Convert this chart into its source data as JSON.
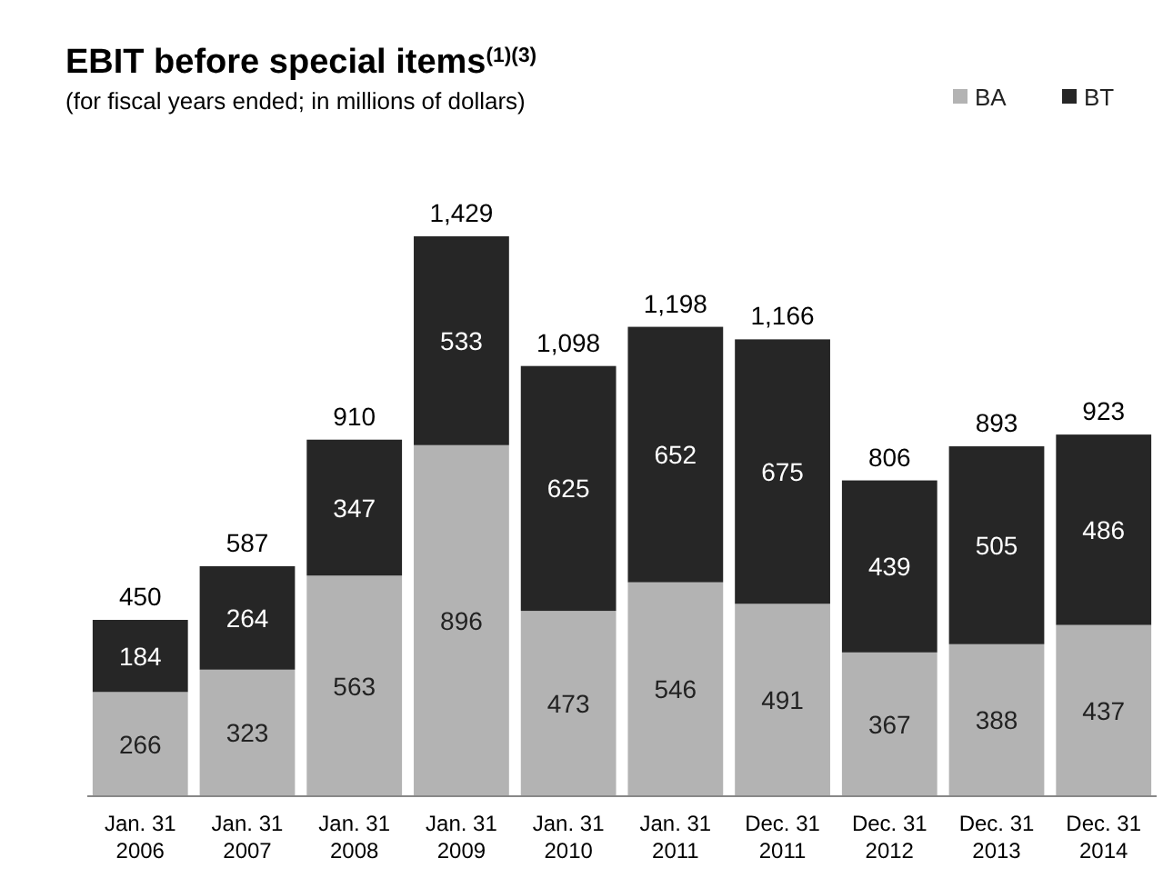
{
  "chart_data": {
    "type": "bar",
    "title": "EBIT before special items$^{(1)(3)}$",
    "subtitle": "(for fiscal years ended; in millions of dollars)",
    "categories": [
      "Jan. 31 2006",
      "Jan. 31 2007",
      "Jan. 31 2008",
      "Jan. 31 2009",
      "Jan. 31 2010",
      "Jan. 31 2011",
      "Dec. 31 2011",
      "Dec. 31 2012",
      "Dec. 31 2013",
      "Dec. 31 2014"
    ],
    "series": [
      {
        "name": "BA",
        "color": "#b3b3b3",
        "values": [
          266,
          323,
          563,
          896,
          473,
          546,
          491,
          367,
          388,
          437
        ]
      },
      {
        "name": "BT",
        "color": "#262626",
        "values": [
          184,
          264,
          347,
          533,
          625,
          652,
          675,
          439,
          505,
          486
        ]
      }
    ],
    "stacked": true,
    "data_labels": true,
    "totals": [
      "450",
      "587",
      "910",
      "1,429",
      "1,098",
      "1,198",
      "1,166",
      "806",
      "893",
      "923"
    ],
    "legend": "top right"
  }
}
